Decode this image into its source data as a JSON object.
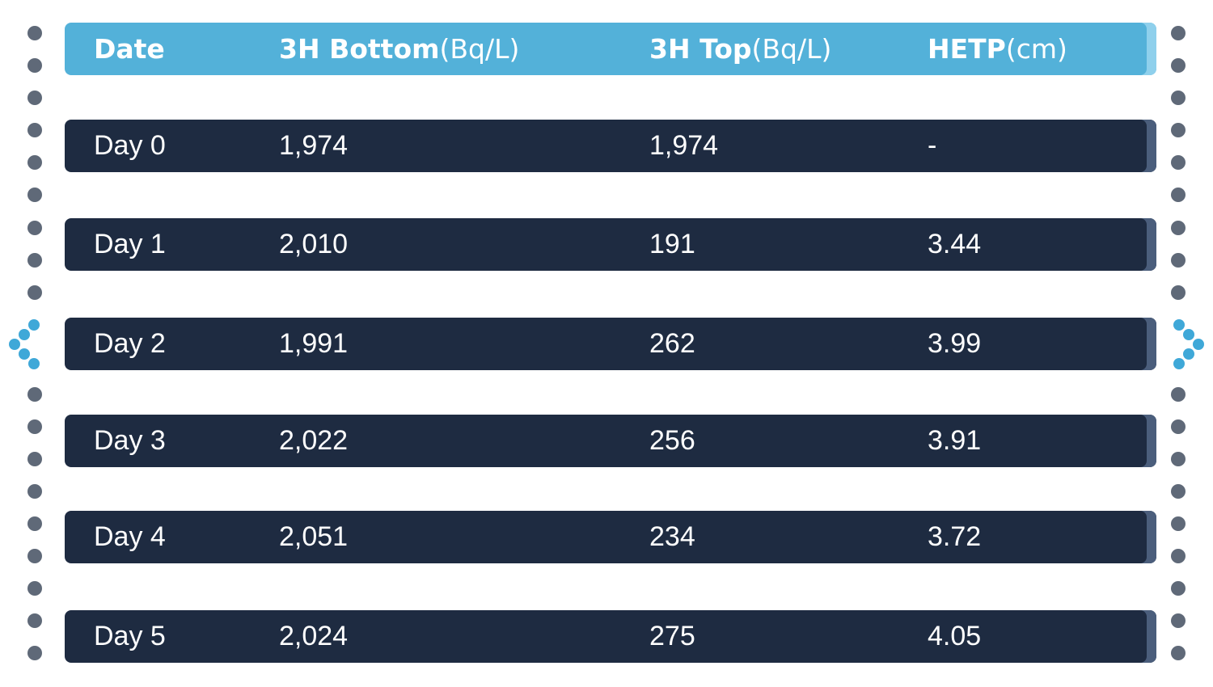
{
  "table": {
    "header": [
      {
        "name": "Date"
      },
      {
        "name": "3H Bottom",
        "unit": "(Bq/L)"
      },
      {
        "name": "3H Top",
        "unit": "(Bq/L)"
      },
      {
        "name": "HETP",
        "unit": "(cm)"
      }
    ],
    "rows": [
      [
        "Day 0",
        "1,974",
        "1,974",
        "-"
      ],
      [
        "Day 1",
        "2,010",
        "191",
        "3.44"
      ],
      [
        "Day 2",
        "1,991",
        "262",
        "3.99"
      ],
      [
        "Day 3",
        "2,022",
        "256",
        "3.91"
      ],
      [
        "Day 4",
        "2,051",
        "234",
        "3.72"
      ],
      [
        "Day 5",
        "2,024",
        "275",
        "4.05"
      ]
    ]
  }
}
